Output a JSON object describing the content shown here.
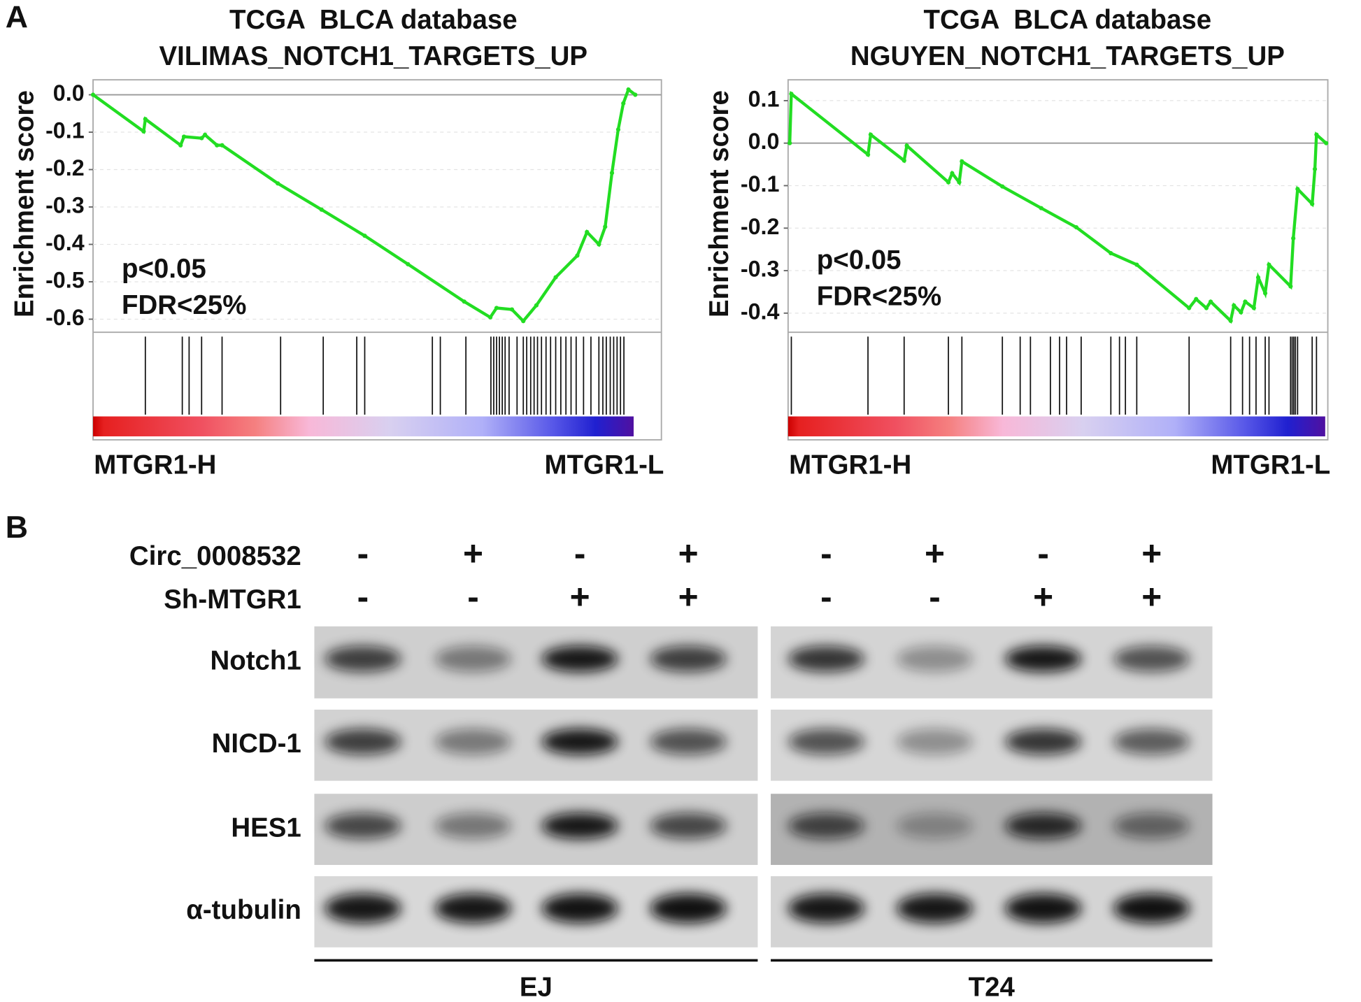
{
  "panel_labels": [
    "A",
    "B"
  ],
  "chart_data": [
    {
      "type": "line",
      "title": "TCGA  BLCA database",
      "subtitle": "VILIMAS_NOTCH1_TARGETS_UP",
      "ylabel": "Enrichment score",
      "color": "#22dd22",
      "grid": true,
      "xlim": [
        0,
        100
      ],
      "ylim": [
        -0.635,
        0.04
      ],
      "yticks": [
        {
          "value": 0,
          "label": "0.0"
        },
        -0.1,
        -0.2,
        -0.3,
        -0.4,
        -0.5,
        -0.6
      ],
      "x": [
        0,
        8.9,
        9.2,
        15.4,
        16.0,
        19.1,
        19.7,
        21.8,
        22.7,
        32.5,
        40.2,
        47.8,
        55.4,
        65.3,
        69.9,
        71.0,
        73.7,
        75.7,
        78.0,
        81.4,
        85.2,
        86.9,
        89.0,
        90.1,
        91.3,
        92.4,
        93.3,
        94.2,
        95.4
      ],
      "values": [
        0,
        -0.098,
        -0.065,
        -0.135,
        -0.112,
        -0.116,
        -0.107,
        -0.135,
        -0.135,
        -0.237,
        -0.307,
        -0.377,
        -0.453,
        -0.553,
        -0.595,
        -0.57,
        -0.574,
        -0.605,
        -0.563,
        -0.488,
        -0.43,
        -0.367,
        -0.4,
        -0.353,
        -0.209,
        -0.093,
        -0.023,
        0.014,
        0
      ],
      "hits": [
        9.2,
        15.7,
        16.9,
        19.1,
        22.7,
        33.0,
        40.5,
        46.4,
        47.8,
        59.7,
        61.1,
        65.6,
        70.0,
        70.5,
        71.0,
        71.5,
        72.0,
        72.5,
        73.2,
        74.6,
        75.7,
        76.3,
        77.0,
        77.6,
        78.2,
        78.9,
        79.7,
        80.5,
        81.4,
        82.3,
        83.2,
        84.1,
        85.0,
        86.3,
        87.6,
        89.0,
        89.7,
        90.3,
        91.0,
        91.6,
        92.2,
        92.8,
        93.4
      ],
      "annotations": [
        "p<0.05",
        "FDR<25%"
      ],
      "xlabel_left": "MTGR1-H",
      "xlabel_right": "MTGR1-L"
    },
    {
      "type": "line",
      "title": "TCGA  BLCA database",
      "subtitle": "NGUYEN_NOTCH1_TARGETS_UP",
      "ylabel": "Enrichment score",
      "color": "#22dd22",
      "grid": true,
      "xlim": [
        0,
        100
      ],
      "ylim": [
        -0.445,
        0.149
      ],
      "yticks": [
        0.1,
        {
          "value": 0,
          "label": "0.0"
        },
        -0.1,
        -0.2,
        -0.3,
        -0.4
      ],
      "x": [
        0.3,
        0.6,
        14.8,
        15.3,
        21.5,
        22.0,
        29.7,
        30.4,
        31.7,
        32.2,
        39.7,
        46.9,
        53.4,
        59.8,
        64.6,
        74.3,
        75.6,
        77.5,
        78.3,
        82.0,
        82.6,
        83.9,
        84.7,
        86.3,
        87.1,
        88.4,
        89.1,
        93.1,
        93.6,
        94.4,
        97.1,
        97.6,
        97.9,
        99.7
      ],
      "values": [
        0,
        0.116,
        -0.027,
        0.02,
        -0.041,
        -0.006,
        -0.092,
        -0.071,
        -0.092,
        -0.043,
        -0.102,
        -0.153,
        -0.198,
        -0.259,
        -0.286,
        -0.388,
        -0.367,
        -0.388,
        -0.373,
        -0.418,
        -0.382,
        -0.398,
        -0.373,
        -0.388,
        -0.316,
        -0.353,
        -0.286,
        -0.337,
        -0.224,
        -0.108,
        -0.143,
        -0.061,
        0.02,
        0
      ],
      "hits": [
        0.6,
        14.8,
        21.5,
        29.7,
        32.2,
        39.7,
        43.0,
        44.9,
        48.6,
        50.3,
        51.6,
        54.3,
        59.8,
        61.4,
        62.5,
        64.6,
        74.3,
        82.0,
        84.2,
        85.5,
        86.7,
        88.4,
        89.1,
        93.1,
        93.4,
        93.7,
        94.0,
        94.4,
        97.1,
        97.9
      ],
      "annotations": [
        "p<0.05",
        "FDR<25%"
      ],
      "xlabel_left": "MTGR1-H",
      "xlabel_right": "MTGR1-L"
    }
  ],
  "blot": {
    "conditions": [
      {
        "label": "Circ_0008532",
        "signs": [
          "-",
          "+",
          "-",
          "+",
          "-",
          "+",
          "-",
          "+"
        ]
      },
      {
        "label": "Sh-MTGR1",
        "signs": [
          "-",
          "-",
          "+",
          "+",
          "-",
          "-",
          "+",
          "+"
        ]
      }
    ],
    "rows": [
      "Notch1",
      "NICD-1",
      "HES1",
      "α-tubulin"
    ],
    "groups": [
      "EJ",
      "T24"
    ]
  }
}
